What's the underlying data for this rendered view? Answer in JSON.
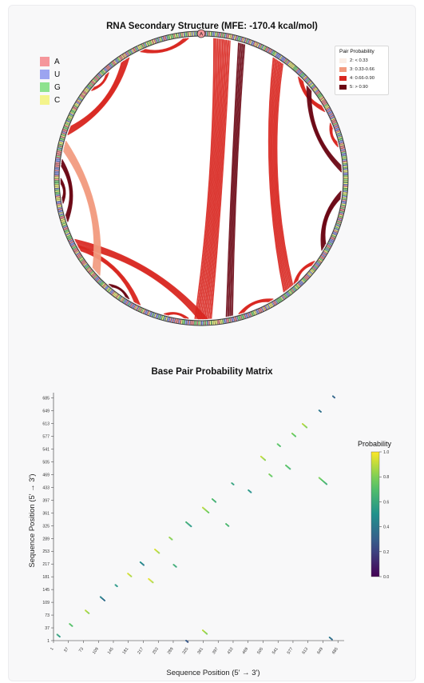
{
  "arc_chart": {
    "title": "RNA Secondary Structure (MFE: -170.4 kcal/mol)",
    "marker_label": "A",
    "nucleotide_legend": [
      {
        "label": "A",
        "color": "#f5969b"
      },
      {
        "label": "U",
        "color": "#9ca4f0"
      },
      {
        "label": "G",
        "color": "#8ee28e"
      },
      {
        "label": "C",
        "color": "#f4f48c"
      }
    ],
    "probability_legend": {
      "title": "Pair Probability",
      "items": [
        {
          "label": "2: < 0.33",
          "color": "#fbeee6"
        },
        {
          "label": "3: 0.33-0.66",
          "color": "#f29a7e"
        },
        {
          "label": "4: 0.66-0.90",
          "color": "#d8261f"
        },
        {
          "label": "5: > 0.90",
          "color": "#6a0513"
        }
      ]
    }
  },
  "chart_data": [
    {
      "type": "arc",
      "title": "RNA Secondary Structure (MFE: -170.4 kcal/mol)",
      "sequence_length": 700,
      "helices": [
        {
          "i_start": 10,
          "j_start": 355,
          "length": 14,
          "category": 4
        },
        {
          "i_start": 30,
          "j_start": 330,
          "length": 6,
          "category": 5
        },
        {
          "i_start": 60,
          "j_start": 280,
          "length": 10,
          "category": 4
        },
        {
          "i_start": 85,
          "j_start": 120,
          "length": 6,
          "category": 4
        },
        {
          "i_start": 95,
          "j_start": 170,
          "length": 6,
          "category": 5
        },
        {
          "i_start": 130,
          "j_start": 150,
          "length": 5,
          "category": 4
        },
        {
          "i_start": 185,
          "j_start": 235,
          "length": 7,
          "category": 5
        },
        {
          "i_start": 245,
          "j_start": 270,
          "length": 5,
          "category": 4
        },
        {
          "i_start": 290,
          "j_start": 320,
          "length": 5,
          "category": 4
        },
        {
          "i_start": 345,
          "j_start": 475,
          "length": 8,
          "category": 4
        },
        {
          "i_start": 360,
          "j_start": 380,
          "length": 4,
          "category": 4
        },
        {
          "i_start": 400,
          "j_start": 470,
          "length": 6,
          "category": 4
        },
        {
          "i_start": 410,
          "j_start": 430,
          "length": 4,
          "category": 5
        },
        {
          "i_start": 440,
          "j_start": 555,
          "length": 9,
          "category": 3
        },
        {
          "i_start": 490,
          "j_start": 540,
          "length": 6,
          "category": 5
        },
        {
          "i_start": 505,
          "j_start": 525,
          "length": 5,
          "category": 5
        },
        {
          "i_start": 560,
          "j_start": 640,
          "length": 8,
          "category": 4
        },
        {
          "i_start": 650,
          "j_start": 690,
          "length": 5,
          "category": 4
        },
        {
          "i_start": 600,
          "j_start": 620,
          "length": 4,
          "category": 4
        }
      ]
    },
    {
      "type": "heatmap",
      "title": "Base Pair Probability Matrix",
      "xlabel": "Sequence Position (5' → 3')",
      "ylabel": "Sequence Position (5' → 3')",
      "x_ticks": [
        1,
        37,
        73,
        109,
        145,
        181,
        217,
        253,
        289,
        325,
        361,
        397,
        433,
        469,
        505,
        541,
        577,
        613,
        649,
        685
      ],
      "y_ticks": [
        1,
        37,
        73,
        109,
        145,
        181,
        217,
        253,
        289,
        325,
        361,
        397,
        433,
        469,
        505,
        541,
        577,
        613,
        649,
        685
      ],
      "xlim": [
        1,
        700
      ],
      "ylim": [
        1,
        700
      ],
      "colorbar": {
        "title": "Probability",
        "ticks": [
          "0.0",
          "0.2",
          "0.4",
          "0.6",
          "0.8",
          "1.0"
        ],
        "range": [
          0,
          1
        ]
      },
      "segments": [
        {
          "i": 10,
          "j": 18,
          "length": 4,
          "p": 0.6
        },
        {
          "i": 40,
          "j": 48,
          "length": 4,
          "p": 0.75
        },
        {
          "i": 78,
          "j": 86,
          "length": 5,
          "p": 0.9
        },
        {
          "i": 114,
          "j": 124,
          "length": 6,
          "p": 0.45
        },
        {
          "i": 150,
          "j": 158,
          "length": 3,
          "p": 0.55
        },
        {
          "i": 180,
          "j": 190,
          "length": 5,
          "p": 0.95
        },
        {
          "i": 210,
          "j": 222,
          "length": 5,
          "p": 0.5
        },
        {
          "i": 245,
          "j": 258,
          "length": 6,
          "p": 0.95
        },
        {
          "i": 280,
          "j": 292,
          "length": 4,
          "p": 0.85
        },
        {
          "i": 320,
          "j": 335,
          "length": 7,
          "p": 0.65
        },
        {
          "i": 360,
          "j": 376,
          "length": 8,
          "p": 0.9
        },
        {
          "i": 383,
          "j": 400,
          "length": 5,
          "p": 0.7
        },
        {
          "i": 430,
          "j": 445,
          "length": 3,
          "p": 0.6
        },
        {
          "i": 500,
          "j": 520,
          "length": 6,
          "p": 0.92
        },
        {
          "i": 540,
          "j": 555,
          "length": 4,
          "p": 0.75
        },
        {
          "i": 575,
          "j": 585,
          "length": 5,
          "p": 0.8
        },
        {
          "i": 600,
          "j": 612,
          "length": 6,
          "p": 0.9
        },
        {
          "i": 640,
          "j": 650,
          "length": 3,
          "p": 0.4
        },
        {
          "i": 673,
          "j": 690,
          "length": 3,
          "p": 0.35
        },
        {
          "i": 230,
          "j": 175,
          "length": 6,
          "p": 0.97
        },
        {
          "i": 290,
          "j": 215,
          "length": 4,
          "p": 0.65
        },
        {
          "i": 360,
          "j": 30,
          "length": 6,
          "p": 0.9
        },
        {
          "i": 416,
          "j": 330,
          "length": 4,
          "p": 0.7
        },
        {
          "i": 470,
          "j": 425,
          "length": 4,
          "p": 0.55
        },
        {
          "i": 520,
          "j": 470,
          "length": 4,
          "p": 0.8
        },
        {
          "i": 560,
          "j": 495,
          "length": 6,
          "p": 0.75
        },
        {
          "i": 640,
          "j": 460,
          "length": 10,
          "p": 0.8
        },
        {
          "i": 665,
          "j": 10,
          "length": 4,
          "p": 0.4
        },
        {
          "i": 320,
          "j": 1,
          "length": 3,
          "p": 0.3
        }
      ]
    }
  ]
}
